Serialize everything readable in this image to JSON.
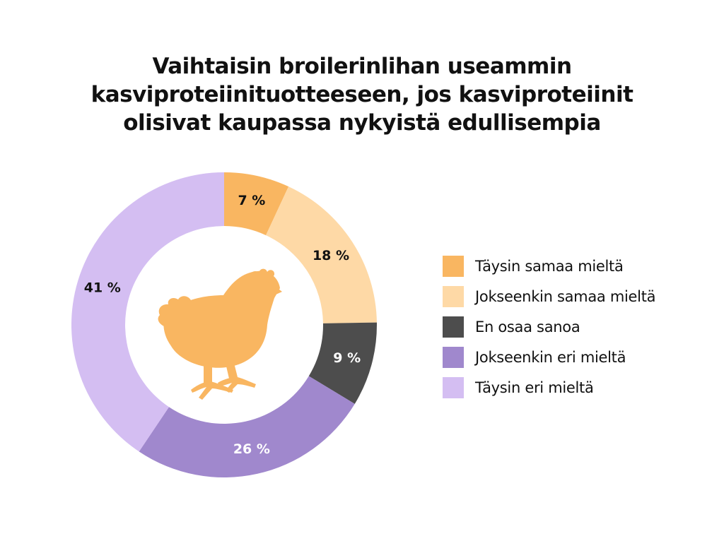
{
  "chart_data": {
    "type": "pie",
    "donut": true,
    "title_lines": [
      "Vaihtaisin broilerinlihan useammin",
      "kasviproteiinituotteeseen, jos kasviproteiinit",
      "olisivat kaupassa nykyistä edullisempia"
    ],
    "unit": "%",
    "slices": [
      {
        "label": "Täysin samaa mieltä",
        "value": 7,
        "value_label": "7 %",
        "color": "#F9B661",
        "text_color": "#111111"
      },
      {
        "label": "Jokseenkin samaa mieltä",
        "value": 18,
        "value_label": "18 %",
        "color": "#FED9A6",
        "text_color": "#111111"
      },
      {
        "label": "En osaa sanoa",
        "value": 9,
        "value_label": "9 %",
        "color": "#4D4D4D",
        "text_color": "#FFFFFF"
      },
      {
        "label": "Jokseenkin eri mieltä",
        "value": 26,
        "value_label": "26 %",
        "color": "#A088CD",
        "text_color": "#FFFFFF"
      },
      {
        "label": "Täysin eri mieltä",
        "value": 41,
        "value_label": "41 %",
        "color": "#D4BEF2",
        "text_color": "#111111"
      }
    ],
    "legend_position": "right",
    "center_icon": "chicken-icon",
    "center_icon_color": "#F9B661"
  }
}
